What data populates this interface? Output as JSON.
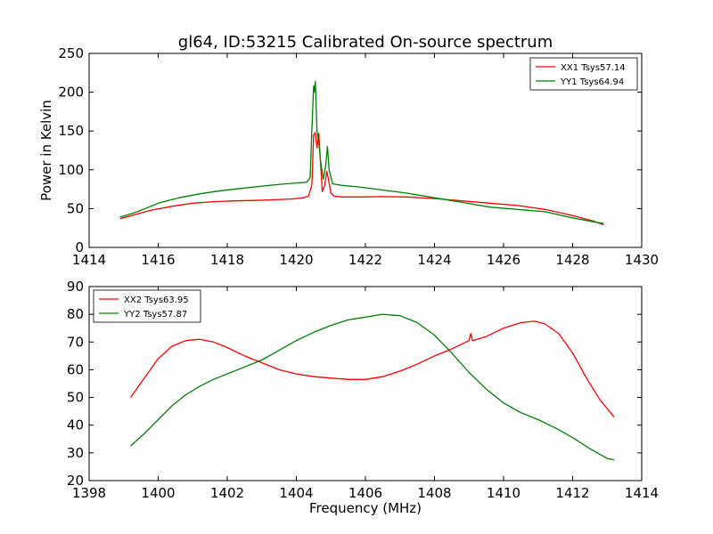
{
  "figure": {
    "title": "gl64, ID:53215 Calibrated On-source spectrum"
  },
  "chart_data": [
    {
      "type": "line",
      "title": "gl64, ID:53215 Calibrated On-source spectrum",
      "xlabel": "",
      "ylabel": "Power in Kelvin",
      "xlim": [
        1414,
        1430
      ],
      "ylim": [
        0,
        250
      ],
      "xticks": [
        "1414",
        "1416",
        "1418",
        "1420",
        "1422",
        "1424",
        "1426",
        "1428",
        "1430"
      ],
      "yticks": [
        "0",
        "50",
        "100",
        "150",
        "200",
        "250"
      ],
      "grid": false,
      "legend_position": "top-right",
      "series": [
        {
          "name": "XX1 Tsys57.14",
          "color": "#ff0000",
          "points": [
            [
              1414.9,
              37
            ],
            [
              1415.3,
              42
            ],
            [
              1415.8,
              48
            ],
            [
              1416.4,
              53
            ],
            [
              1417.0,
              57
            ],
            [
              1417.6,
              59
            ],
            [
              1418.2,
              60
            ],
            [
              1418.8,
              60.5
            ],
            [
              1419.4,
              61.5
            ],
            [
              1419.9,
              62.5
            ],
            [
              1420.2,
              64
            ],
            [
              1420.35,
              66
            ],
            [
              1420.45,
              80
            ],
            [
              1420.5,
              145
            ],
            [
              1420.55,
              148
            ],
            [
              1420.6,
              128
            ],
            [
              1420.65,
              147
            ],
            [
              1420.7,
              110
            ],
            [
              1420.75,
              72
            ],
            [
              1420.82,
              80
            ],
            [
              1420.88,
              98
            ],
            [
              1420.93,
              88
            ],
            [
              1421.0,
              70
            ],
            [
              1421.1,
              66
            ],
            [
              1421.3,
              65
            ],
            [
              1421.8,
              65
            ],
            [
              1422.5,
              65.5
            ],
            [
              1423.2,
              65
            ],
            [
              1424.0,
              63
            ],
            [
              1424.8,
              60
            ],
            [
              1425.6,
              57
            ],
            [
              1426.4,
              54
            ],
            [
              1427.2,
              49
            ],
            [
              1428.0,
              41
            ],
            [
              1428.6,
              34
            ],
            [
              1428.9,
              29
            ]
          ]
        },
        {
          "name": "YY1 Tsys64.94",
          "color": "#008000",
          "points": [
            [
              1414.9,
              39
            ],
            [
              1415.4,
              46
            ],
            [
              1416.0,
              57
            ],
            [
              1416.6,
              64
            ],
            [
              1417.2,
              69
            ],
            [
              1417.8,
              73
            ],
            [
              1418.4,
              76
            ],
            [
              1419.0,
              79
            ],
            [
              1419.6,
              81.5
            ],
            [
              1420.0,
              83
            ],
            [
              1420.3,
              84
            ],
            [
              1420.4,
              90
            ],
            [
              1420.45,
              150
            ],
            [
              1420.5,
              208
            ],
            [
              1420.52,
              200
            ],
            [
              1420.55,
              214
            ],
            [
              1420.6,
              150
            ],
            [
              1420.65,
              135
            ],
            [
              1420.7,
              112
            ],
            [
              1420.78,
              88
            ],
            [
              1420.85,
              105
            ],
            [
              1420.9,
              130
            ],
            [
              1420.95,
              100
            ],
            [
              1421.05,
              82
            ],
            [
              1421.3,
              80
            ],
            [
              1421.8,
              78
            ],
            [
              1422.5,
              74
            ],
            [
              1423.2,
              70
            ],
            [
              1424.0,
              64
            ],
            [
              1424.8,
              58
            ],
            [
              1425.6,
              52
            ],
            [
              1426.4,
              49
            ],
            [
              1427.2,
              46
            ],
            [
              1428.0,
              38
            ],
            [
              1428.6,
              33
            ],
            [
              1428.9,
              31
            ]
          ]
        }
      ]
    },
    {
      "type": "line",
      "title": "",
      "xlabel": "Frequency (MHz)",
      "ylabel": "",
      "xlim": [
        1398,
        1414
      ],
      "ylim": [
        20,
        90
      ],
      "xticks": [
        "1398",
        "1400",
        "1402",
        "1404",
        "1406",
        "1408",
        "1410",
        "1412",
        "1414"
      ],
      "yticks": [
        "20",
        "30",
        "40",
        "50",
        "60",
        "70",
        "80",
        "90"
      ],
      "grid": false,
      "legend_position": "top-left",
      "series": [
        {
          "name": "XX2 Tsys63.95",
          "color": "#ff0000",
          "points": [
            [
              1399.2,
              50
            ],
            [
              1399.6,
              57
            ],
            [
              1400.0,
              64
            ],
            [
              1400.4,
              68.5
            ],
            [
              1400.8,
              70.5
            ],
            [
              1401.2,
              71
            ],
            [
              1401.6,
              70
            ],
            [
              1402.0,
              68
            ],
            [
              1402.5,
              65
            ],
            [
              1403.0,
              62.5
            ],
            [
              1403.5,
              60
            ],
            [
              1404.0,
              58.5
            ],
            [
              1404.5,
              57.5
            ],
            [
              1405.0,
              57
            ],
            [
              1405.5,
              56.5
            ],
            [
              1406.0,
              56.5
            ],
            [
              1406.5,
              57.5
            ],
            [
              1407.0,
              59.5
            ],
            [
              1407.5,
              62
            ],
            [
              1408.0,
              65
            ],
            [
              1408.5,
              67.5
            ],
            [
              1409.0,
              70.5
            ],
            [
              1409.05,
              73
            ],
            [
              1409.1,
              70.5
            ],
            [
              1409.5,
              72
            ],
            [
              1410.0,
              75
            ],
            [
              1410.5,
              77
            ],
            [
              1410.9,
              77.5
            ],
            [
              1411.2,
              76.5
            ],
            [
              1411.6,
              73
            ],
            [
              1412.0,
              66
            ],
            [
              1412.4,
              57
            ],
            [
              1412.8,
              49
            ],
            [
              1413.2,
              43
            ]
          ]
        },
        {
          "name": "YY2 Tsys57.87",
          "color": "#008000",
          "points": [
            [
              1399.2,
              32.5
            ],
            [
              1399.6,
              37
            ],
            [
              1400.0,
              42
            ],
            [
              1400.4,
              47
            ],
            [
              1400.8,
              51
            ],
            [
              1401.2,
              54
            ],
            [
              1401.6,
              56.5
            ],
            [
              1402.0,
              58.5
            ],
            [
              1402.5,
              61
            ],
            [
              1403.0,
              63.5
            ],
            [
              1403.5,
              67
            ],
            [
              1404.0,
              70.5
            ],
            [
              1404.5,
              73.5
            ],
            [
              1405.0,
              76
            ],
            [
              1405.5,
              78
            ],
            [
              1406.0,
              79
            ],
            [
              1406.5,
              80
            ],
            [
              1407.0,
              79.5
            ],
            [
              1407.5,
              77
            ],
            [
              1408.0,
              72.5
            ],
            [
              1408.5,
              66
            ],
            [
              1409.0,
              59
            ],
            [
              1409.5,
              53
            ],
            [
              1410.0,
              48
            ],
            [
              1410.5,
              44.5
            ],
            [
              1411.0,
              42
            ],
            [
              1411.5,
              39
            ],
            [
              1412.0,
              35.5
            ],
            [
              1412.5,
              31.5
            ],
            [
              1413.0,
              28
            ],
            [
              1413.2,
              27.5
            ]
          ]
        }
      ]
    }
  ]
}
